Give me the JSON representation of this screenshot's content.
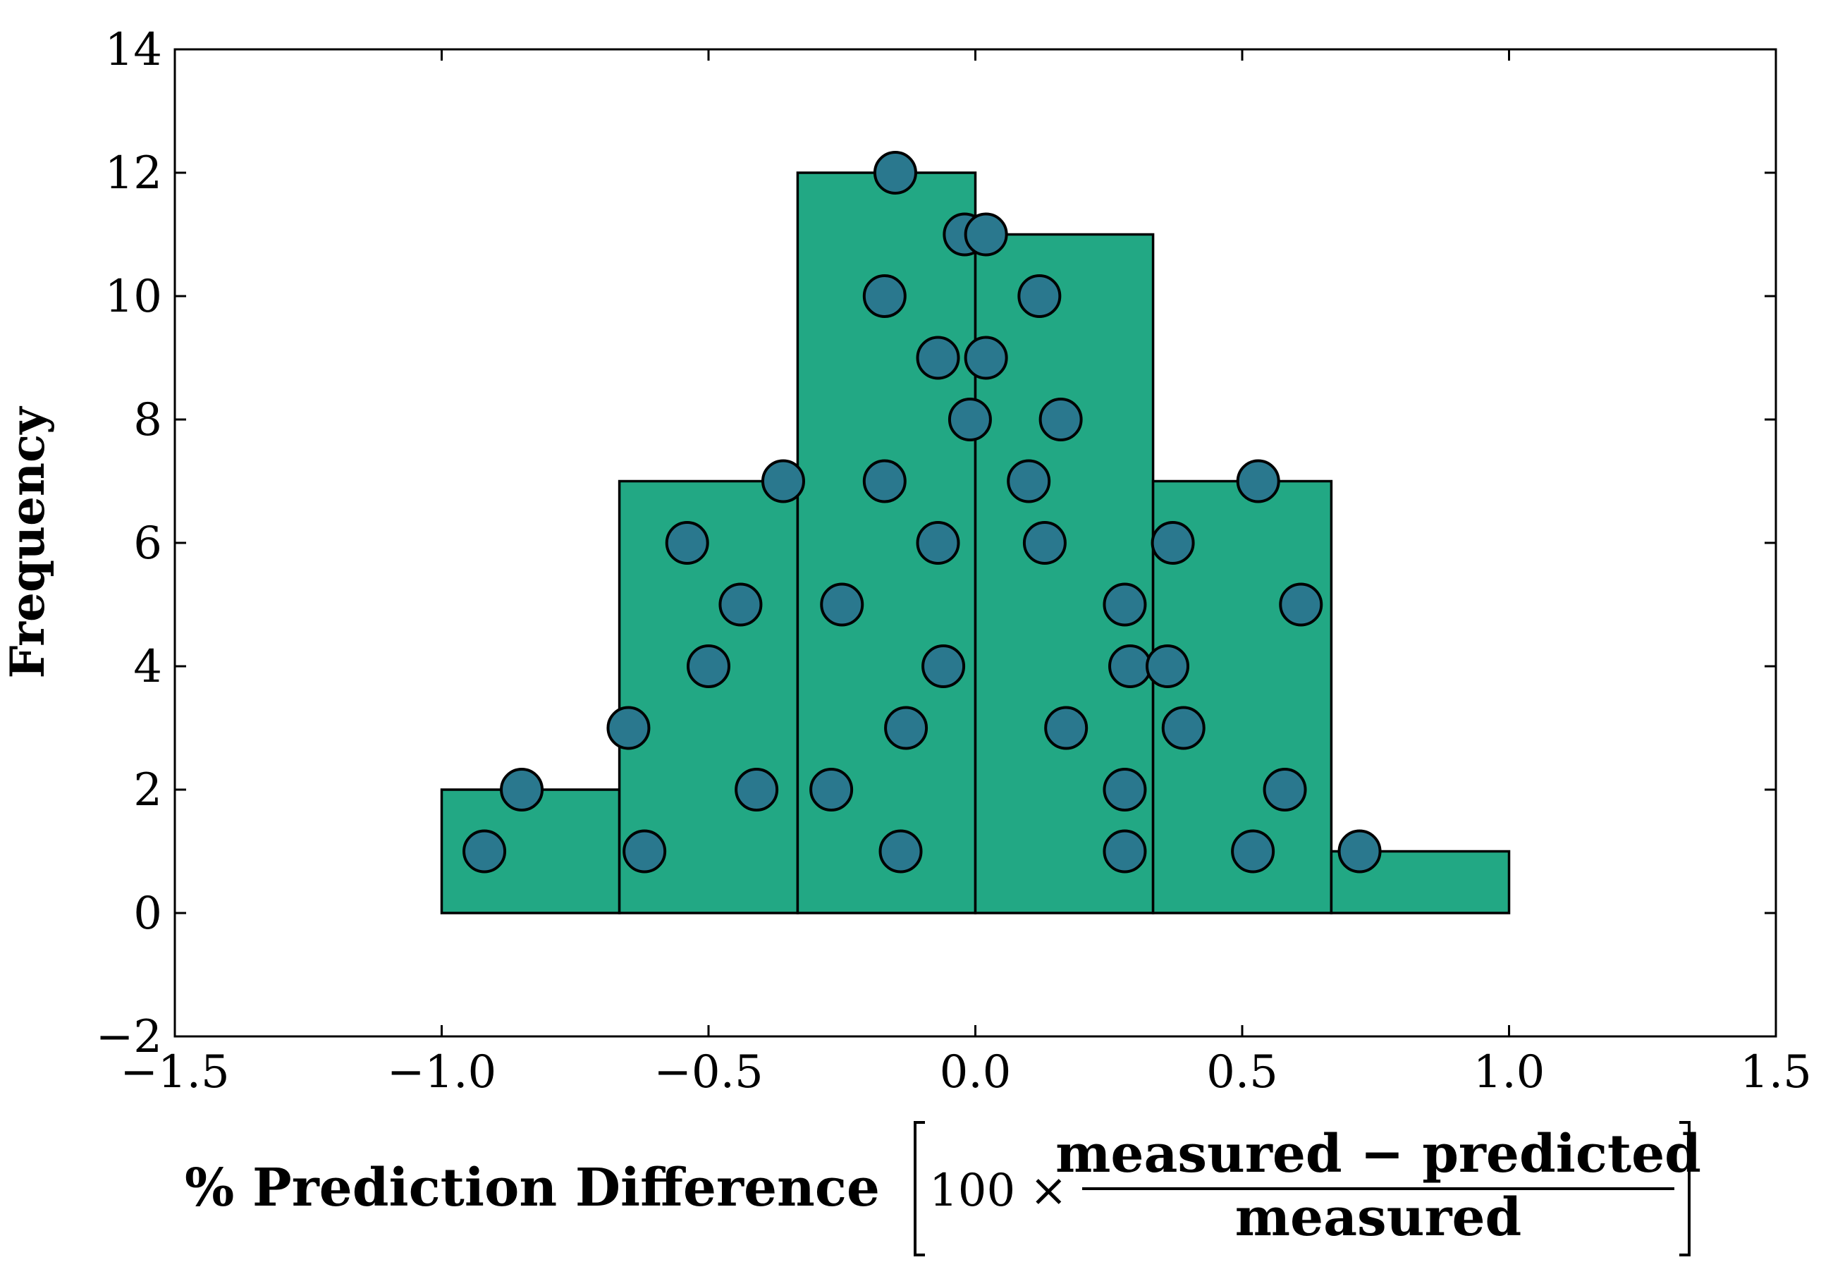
{
  "colors": {
    "bar_fill": "#22a884",
    "bar_edge": "#000000",
    "point_fill": "#2a788e",
    "point_edge": "#000000",
    "axes": "#000000",
    "background": "#ffffff"
  },
  "chart_data": {
    "type": "bar",
    "title": "",
    "ylabel": "Frequency",
    "xlabel": {
      "prefix": "% Prediction Difference",
      "multiplier": "100 ×",
      "numerator": "measured − predicted",
      "denominator": "measured"
    },
    "xlim": [
      -1.5,
      1.5
    ],
    "ylim": [
      -2,
      14
    ],
    "xticks": [
      -1.5,
      -1.0,
      -0.5,
      0.0,
      0.5,
      1.0,
      1.5
    ],
    "xtick_labels": [
      "−1.5",
      "−1.0",
      "−0.5",
      "0.0",
      "0.5",
      "1.0",
      "1.5"
    ],
    "yticks": [
      -2,
      0,
      2,
      4,
      6,
      8,
      10,
      12,
      14
    ],
    "ytick_labels": [
      "−2",
      "0",
      "2",
      "4",
      "6",
      "8",
      "10",
      "12",
      "14"
    ],
    "grid": false,
    "legend": "none",
    "bins": [
      {
        "left": -1.0,
        "right": -0.667,
        "count": 2
      },
      {
        "left": -0.667,
        "right": -0.333,
        "count": 7
      },
      {
        "left": -0.333,
        "right": 0.0,
        "count": 12
      },
      {
        "left": 0.0,
        "right": 0.333,
        "count": 11
      },
      {
        "left": 0.333,
        "right": 0.667,
        "count": 7
      },
      {
        "left": 0.667,
        "right": 1.0,
        "count": 1
      }
    ],
    "points": [
      {
        "x": -0.92,
        "y": 1
      },
      {
        "x": -0.85,
        "y": 2
      },
      {
        "x": -0.62,
        "y": 1
      },
      {
        "x": -0.65,
        "y": 3
      },
      {
        "x": -0.5,
        "y": 4
      },
      {
        "x": -0.44,
        "y": 5
      },
      {
        "x": -0.54,
        "y": 6
      },
      {
        "x": -0.36,
        "y": 7
      },
      {
        "x": -0.41,
        "y": 2
      },
      {
        "x": -0.14,
        "y": 1
      },
      {
        "x": -0.27,
        "y": 2
      },
      {
        "x": -0.13,
        "y": 3
      },
      {
        "x": -0.06,
        "y": 4
      },
      {
        "x": -0.25,
        "y": 5
      },
      {
        "x": -0.07,
        "y": 6
      },
      {
        "x": -0.17,
        "y": 7
      },
      {
        "x": -0.01,
        "y": 8
      },
      {
        "x": -0.07,
        "y": 9
      },
      {
        "x": -0.17,
        "y": 10
      },
      {
        "x": -0.02,
        "y": 11
      },
      {
        "x": -0.15,
        "y": 12
      },
      {
        "x": 0.28,
        "y": 1
      },
      {
        "x": 0.28,
        "y": 2
      },
      {
        "x": 0.17,
        "y": 3
      },
      {
        "x": 0.29,
        "y": 4
      },
      {
        "x": 0.28,
        "y": 5
      },
      {
        "x": 0.13,
        "y": 6
      },
      {
        "x": 0.1,
        "y": 7
      },
      {
        "x": 0.16,
        "y": 8
      },
      {
        "x": 0.02,
        "y": 9
      },
      {
        "x": 0.12,
        "y": 10
      },
      {
        "x": 0.02,
        "y": 11
      },
      {
        "x": 0.52,
        "y": 1
      },
      {
        "x": 0.58,
        "y": 2
      },
      {
        "x": 0.39,
        "y": 3
      },
      {
        "x": 0.36,
        "y": 4
      },
      {
        "x": 0.61,
        "y": 5
      },
      {
        "x": 0.37,
        "y": 6
      },
      {
        "x": 0.53,
        "y": 7
      },
      {
        "x": 0.72,
        "y": 1
      }
    ]
  }
}
